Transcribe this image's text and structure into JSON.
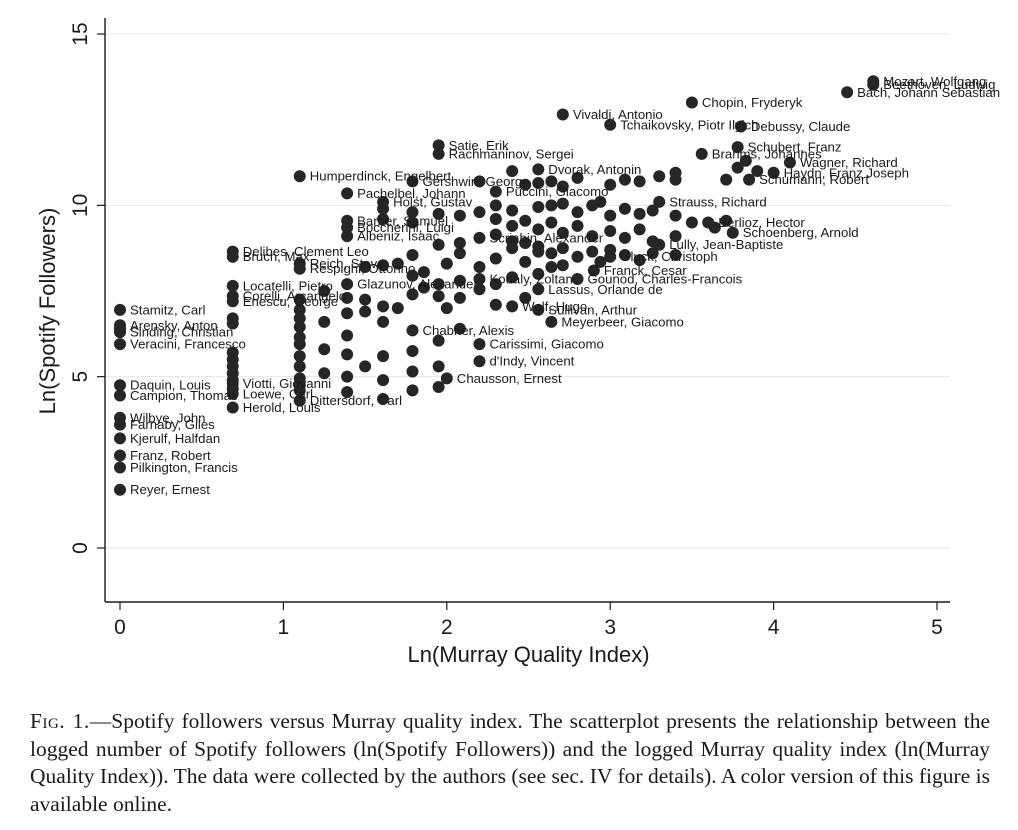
{
  "chart_data": {
    "type": "scatter",
    "xlabel": "Ln(Murray Quality Index)",
    "ylabel": "Ln(Spotify Followers)",
    "xlim": [
      0,
      5
    ],
    "ylim": [
      0,
      15
    ],
    "xticks": [
      "0",
      "1",
      "2",
      "3",
      "4",
      "5"
    ],
    "yticks": [
      "0",
      "5",
      "10",
      "15"
    ],
    "grid": "horizontal",
    "legend": "none",
    "marker_color": "#262626",
    "points": [
      {
        "x": 4.61,
        "y": 13.62,
        "label": "Mozart, Wolfgang"
      },
      {
        "x": 4.61,
        "y": 13.52,
        "label": "Beethoven, Ludwig"
      },
      {
        "x": 4.45,
        "y": 13.3,
        "label": "Bach, Johann Sebastian"
      },
      {
        "x": 3.5,
        "y": 13.0,
        "label": "Chopin, Fryderyk"
      },
      {
        "x": 2.71,
        "y": 12.65,
        "label": "Vivaldi, Antonio"
      },
      {
        "x": 3.0,
        "y": 12.35,
        "label": "Tchaikovsky, Piotr Ilyich"
      },
      {
        "x": 3.8,
        "y": 12.3,
        "label": "Debussy, Claude"
      },
      {
        "x": 3.78,
        "y": 11.7,
        "label": "Schubert, Franz"
      },
      {
        "x": 3.56,
        "y": 11.5,
        "label": "Brahms, Johannes"
      },
      {
        "x": 4.1,
        "y": 11.25,
        "label": "Wagner, Richard"
      },
      {
        "x": 4.0,
        "y": 10.95,
        "label": "Haydn, Franz Joseph"
      },
      {
        "x": 3.85,
        "y": 10.75,
        "label": "Schumann, Robert"
      },
      {
        "x": 1.95,
        "y": 11.75,
        "label": "Satie, Erik"
      },
      {
        "x": 1.95,
        "y": 11.5,
        "label": "Rachmaninov, Sergei"
      },
      {
        "x": 2.56,
        "y": 11.05,
        "label": "Dvorak, Antonin"
      },
      {
        "x": 1.1,
        "y": 10.85,
        "label": "Humperdinck, Engelbert"
      },
      {
        "x": 1.79,
        "y": 10.7,
        "label": "Gershwin, George"
      },
      {
        "x": 1.39,
        "y": 10.35,
        "label": "Pachelbel, Johann"
      },
      {
        "x": 2.3,
        "y": 10.4,
        "label": "Puccini, Giacomo"
      },
      {
        "x": 1.61,
        "y": 10.1,
        "label": "Holst, Gustav"
      },
      {
        "x": 3.3,
        "y": 10.1,
        "label": "Strauss, Richard"
      },
      {
        "x": 3.6,
        "y": 9.5,
        "label": "Berlioz, Hector"
      },
      {
        "x": 3.75,
        "y": 9.2,
        "label": "Schoenberg, Arnold"
      },
      {
        "x": 1.39,
        "y": 9.55,
        "label": "Barber, Samuel"
      },
      {
        "x": 1.39,
        "y": 9.35,
        "label": "Boccherini, Luigi"
      },
      {
        "x": 1.39,
        "y": 9.1,
        "label": "Albeniz, Isaac"
      },
      {
        "x": 2.2,
        "y": 9.05,
        "label": "Scriabin, Alexander"
      },
      {
        "x": 3.3,
        "y": 8.85,
        "label": "Lully, Jean-Baptiste"
      },
      {
        "x": 0.69,
        "y": 8.65,
        "label": "Delibes, Clement Leo"
      },
      {
        "x": 0.69,
        "y": 8.5,
        "label": "Bruch, Max"
      },
      {
        "x": 1.1,
        "y": 8.3,
        "label": "Reich, Steve"
      },
      {
        "x": 1.1,
        "y": 8.15,
        "label": "Respighi, Ottorino"
      },
      {
        "x": 3.0,
        "y": 8.5,
        "label": "Gluck, Christoph"
      },
      {
        "x": 2.9,
        "y": 8.1,
        "label": "Franck, Cesar"
      },
      {
        "x": 2.8,
        "y": 7.85,
        "label": "Gounod, Charles-Francois"
      },
      {
        "x": 2.56,
        "y": 7.55,
        "label": "Lassus, Orlande de"
      },
      {
        "x": 0.69,
        "y": 7.65,
        "label": "Locatelli, Pietro"
      },
      {
        "x": 0.69,
        "y": 7.35,
        "label": "Corelli, Arcangelo"
      },
      {
        "x": 0.69,
        "y": 7.2,
        "label": "Enescu, George"
      },
      {
        "x": 1.39,
        "y": 7.7,
        "label": "Glazunov, Alexander"
      },
      {
        "x": 2.2,
        "y": 7.85,
        "label": "Kodaly, Zoltan"
      },
      {
        "x": 2.4,
        "y": 7.05,
        "label": "Wolf, Hugo"
      },
      {
        "x": 2.56,
        "y": 6.95,
        "label": "Sullivan, Arthur"
      },
      {
        "x": 2.64,
        "y": 6.6,
        "label": "Meyerbeer, Giacomo"
      },
      {
        "x": 1.79,
        "y": 6.35,
        "label": "Chabrier, Alexis"
      },
      {
        "x": 2.2,
        "y": 5.95,
        "label": "Carissimi, Giacomo"
      },
      {
        "x": 2.2,
        "y": 5.45,
        "label": "d'Indy, Vincent"
      },
      {
        "x": 2.0,
        "y": 4.95,
        "label": "Chausson, Ernest"
      },
      {
        "x": 0.0,
        "y": 6.95,
        "label": "Stamitz, Carl"
      },
      {
        "x": 0.0,
        "y": 6.5,
        "label": "Arensky, Anton"
      },
      {
        "x": 0.0,
        "y": 6.3,
        "label": "Sinding, Christian"
      },
      {
        "x": 0.0,
        "y": 5.95,
        "label": "Veracini, Francesco"
      },
      {
        "x": 0.0,
        "y": 4.75,
        "label": "Daquin, Louis"
      },
      {
        "x": 0.0,
        "y": 4.45,
        "label": "Campion, Thomas"
      },
      {
        "x": 0.0,
        "y": 3.8,
        "label": "Wilbye, John"
      },
      {
        "x": 0.0,
        "y": 3.6,
        "label": "Farnaby, Giles"
      },
      {
        "x": 0.0,
        "y": 3.2,
        "label": "Kjerulf, Halfdan"
      },
      {
        "x": 0.0,
        "y": 2.7,
        "label": "Franz, Robert"
      },
      {
        "x": 0.0,
        "y": 2.35,
        "label": "Pilkington, Francis"
      },
      {
        "x": 0.0,
        "y": 1.7,
        "label": "Reyer, Ernest"
      },
      {
        "x": 0.69,
        "y": 4.1,
        "label": "Herold, Louis"
      },
      {
        "x": 0.69,
        "y": 4.5,
        "label": "Loewe, Carl"
      },
      {
        "x": 0.69,
        "y": 4.8,
        "label": "Viotti, Giovanni"
      },
      {
        "x": 1.1,
        "y": 4.3,
        "label": "Dittersdorf, Carl"
      },
      {
        "x": 2.64,
        "y": 8.2
      },
      {
        "x": 2.56,
        "y": 8.65
      },
      {
        "x": 2.48,
        "y": 8.35
      },
      {
        "x": 2.4,
        "y": 8.75
      },
      {
        "x": 2.3,
        "y": 8.45
      },
      {
        "x": 2.2,
        "y": 8.2
      },
      {
        "x": 2.08,
        "y": 8.6
      },
      {
        "x": 2.0,
        "y": 8.3
      },
      {
        "x": 1.95,
        "y": 8.85
      },
      {
        "x": 1.95,
        "y": 7.7
      },
      {
        "x": 1.86,
        "y": 8.05
      },
      {
        "x": 1.79,
        "y": 7.4
      },
      {
        "x": 1.79,
        "y": 8.55
      },
      {
        "x": 1.7,
        "y": 7.0
      },
      {
        "x": 1.61,
        "y": 8.25
      },
      {
        "x": 1.61,
        "y": 6.6
      },
      {
        "x": 1.5,
        "y": 7.25
      },
      {
        "x": 1.39,
        "y": 6.85
      },
      {
        "x": 1.39,
        "y": 6.2
      },
      {
        "x": 1.39,
        "y": 5.65
      },
      {
        "x": 1.39,
        "y": 5.0
      },
      {
        "x": 1.39,
        "y": 4.55
      },
      {
        "x": 1.5,
        "y": 5.3
      },
      {
        "x": 1.61,
        "y": 5.6
      },
      {
        "x": 1.61,
        "y": 4.9
      },
      {
        "x": 1.61,
        "y": 4.35
      },
      {
        "x": 1.79,
        "y": 5.15
      },
      {
        "x": 1.79,
        "y": 4.6
      },
      {
        "x": 1.79,
        "y": 5.75
      },
      {
        "x": 1.95,
        "y": 5.3
      },
      {
        "x": 1.95,
        "y": 4.7
      },
      {
        "x": 1.95,
        "y": 6.05
      },
      {
        "x": 2.08,
        "y": 6.4
      },
      {
        "x": 2.08,
        "y": 7.3
      },
      {
        "x": 1.1,
        "y": 7.25
      },
      {
        "x": 1.1,
        "y": 6.95
      },
      {
        "x": 1.1,
        "y": 6.7
      },
      {
        "x": 1.1,
        "y": 6.45
      },
      {
        "x": 1.1,
        "y": 6.15
      },
      {
        "x": 1.1,
        "y": 5.95
      },
      {
        "x": 1.1,
        "y": 5.6
      },
      {
        "x": 1.1,
        "y": 5.3
      },
      {
        "x": 1.1,
        "y": 4.95
      },
      {
        "x": 1.1,
        "y": 4.6
      },
      {
        "x": 1.1,
        "y": 4.75
      },
      {
        "x": 1.25,
        "y": 5.8
      },
      {
        "x": 1.25,
        "y": 5.1
      },
      {
        "x": 1.25,
        "y": 6.6
      },
      {
        "x": 1.25,
        "y": 7.5
      },
      {
        "x": 0.69,
        "y": 6.7
      },
      {
        "x": 0.69,
        "y": 6.55
      },
      {
        "x": 0.69,
        "y": 5.7
      },
      {
        "x": 0.69,
        "y": 5.5
      },
      {
        "x": 0.69,
        "y": 5.3
      },
      {
        "x": 0.69,
        "y": 5.1
      },
      {
        "x": 0.69,
        "y": 4.9
      },
      {
        "x": 0.69,
        "y": 4.65
      },
      {
        "x": 2.2,
        "y": 10.7
      },
      {
        "x": 2.4,
        "y": 11.0
      },
      {
        "x": 2.48,
        "y": 10.6
      },
      {
        "x": 2.56,
        "y": 10.65
      },
      {
        "x": 2.64,
        "y": 10.7
      },
      {
        "x": 2.71,
        "y": 10.55
      },
      {
        "x": 2.8,
        "y": 10.8
      },
      {
        "x": 3.0,
        "y": 10.6
      },
      {
        "x": 3.09,
        "y": 10.75
      },
      {
        "x": 3.18,
        "y": 10.7
      },
      {
        "x": 3.3,
        "y": 10.85
      },
      {
        "x": 3.4,
        "y": 10.75
      },
      {
        "x": 3.4,
        "y": 10.95
      },
      {
        "x": 3.71,
        "y": 10.75
      },
      {
        "x": 3.78,
        "y": 11.1
      },
      {
        "x": 3.83,
        "y": 11.3
      },
      {
        "x": 3.9,
        "y": 11.0
      },
      {
        "x": 2.3,
        "y": 10.0
      },
      {
        "x": 2.4,
        "y": 9.85
      },
      {
        "x": 2.56,
        "y": 9.95
      },
      {
        "x": 2.64,
        "y": 10.0
      },
      {
        "x": 2.71,
        "y": 10.05
      },
      {
        "x": 2.8,
        "y": 9.8
      },
      {
        "x": 2.89,
        "y": 10.0
      },
      {
        "x": 2.94,
        "y": 10.1
      },
      {
        "x": 3.0,
        "y": 9.7
      },
      {
        "x": 3.09,
        "y": 9.9
      },
      {
        "x": 3.18,
        "y": 9.75
      },
      {
        "x": 3.26,
        "y": 9.85
      },
      {
        "x": 3.4,
        "y": 9.7
      },
      {
        "x": 3.5,
        "y": 9.5
      },
      {
        "x": 3.64,
        "y": 9.35
      },
      {
        "x": 3.71,
        "y": 9.55
      },
      {
        "x": 2.3,
        "y": 9.6
      },
      {
        "x": 2.4,
        "y": 9.4
      },
      {
        "x": 2.48,
        "y": 9.55
      },
      {
        "x": 2.56,
        "y": 9.3
      },
      {
        "x": 2.64,
        "y": 9.5
      },
      {
        "x": 2.71,
        "y": 9.2
      },
      {
        "x": 2.8,
        "y": 9.4
      },
      {
        "x": 2.89,
        "y": 9.1
      },
      {
        "x": 3.0,
        "y": 9.25
      },
      {
        "x": 3.09,
        "y": 9.05
      },
      {
        "x": 3.18,
        "y": 9.3
      },
      {
        "x": 3.26,
        "y": 8.95
      },
      {
        "x": 3.4,
        "y": 9.1
      },
      {
        "x": 1.79,
        "y": 9.8
      },
      {
        "x": 1.61,
        "y": 9.9
      },
      {
        "x": 1.61,
        "y": 9.6
      },
      {
        "x": 1.79,
        "y": 9.5
      },
      {
        "x": 1.95,
        "y": 9.75
      },
      {
        "x": 2.08,
        "y": 9.7
      },
      {
        "x": 2.2,
        "y": 9.8
      },
      {
        "x": 2.3,
        "y": 9.15
      },
      {
        "x": 2.4,
        "y": 8.95
      },
      {
        "x": 2.48,
        "y": 8.9
      },
      {
        "x": 2.56,
        "y": 8.8
      },
      {
        "x": 2.64,
        "y": 8.6
      },
      {
        "x": 2.71,
        "y": 8.75
      },
      {
        "x": 2.8,
        "y": 8.5
      },
      {
        "x": 2.89,
        "y": 8.65
      },
      {
        "x": 2.94,
        "y": 8.35
      },
      {
        "x": 3.0,
        "y": 8.7
      },
      {
        "x": 3.09,
        "y": 8.55
      },
      {
        "x": 3.18,
        "y": 8.4
      },
      {
        "x": 3.26,
        "y": 8.6
      },
      {
        "x": 3.4,
        "y": 8.55
      },
      {
        "x": 2.71,
        "y": 8.25
      },
      {
        "x": 2.56,
        "y": 8.0
      },
      {
        "x": 2.4,
        "y": 7.9
      },
      {
        "x": 2.3,
        "y": 7.7
      },
      {
        "x": 2.2,
        "y": 7.55
      },
      {
        "x": 2.08,
        "y": 7.8
      },
      {
        "x": 2.08,
        "y": 8.9
      },
      {
        "x": 1.95,
        "y": 7.35
      },
      {
        "x": 1.86,
        "y": 7.6
      },
      {
        "x": 1.79,
        "y": 7.95
      },
      {
        "x": 1.7,
        "y": 8.3
      },
      {
        "x": 1.5,
        "y": 8.2
      },
      {
        "x": 1.39,
        "y": 7.3
      },
      {
        "x": 1.5,
        "y": 6.9
      },
      {
        "x": 1.61,
        "y": 7.05
      },
      {
        "x": 2.0,
        "y": 7.0
      },
      {
        "x": 2.3,
        "y": 7.1
      },
      {
        "x": 2.48,
        "y": 7.3
      },
      {
        "x": 0.0,
        "y": 6.4
      }
    ]
  },
  "caption": {
    "fig_label": "Fig. 1.",
    "text": "—Spotify followers versus Murray quality index. The scatterplot presents the relationship between the logged number of Spotify followers (ln(Spotify Followers)) and the logged Murray quality index (ln(Murray Quality Index)). The data were collected by the authors (see sec. IV for details). A color version of this figure is available online."
  }
}
